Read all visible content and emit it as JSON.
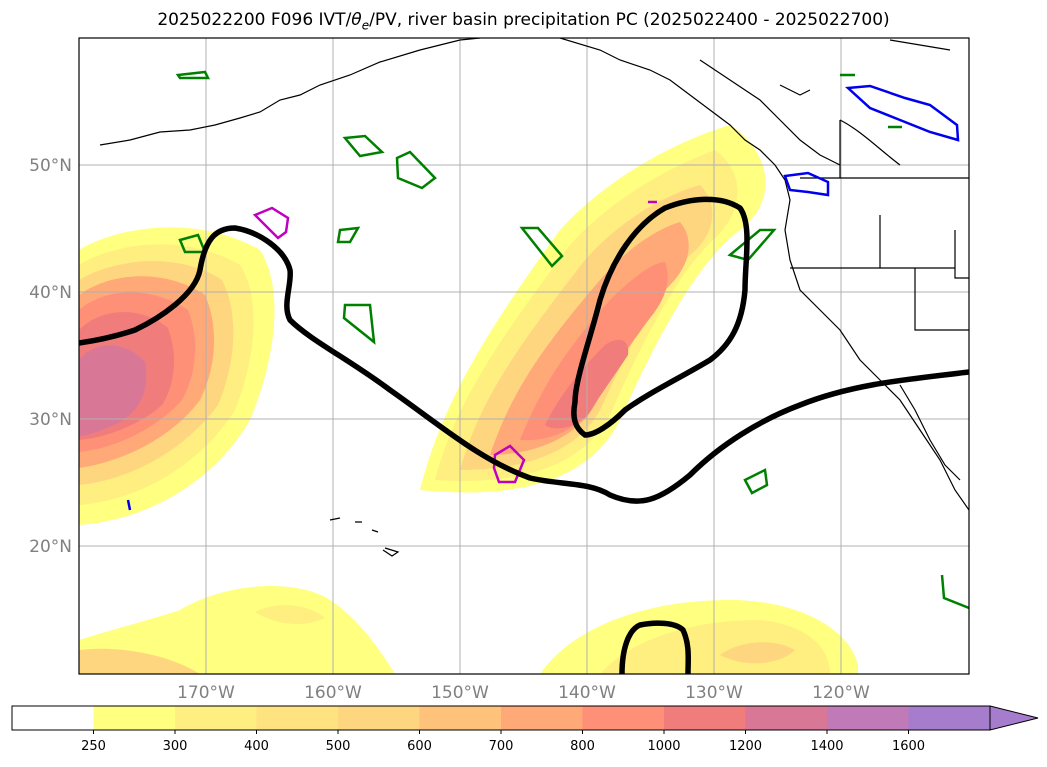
{
  "title_prefix": "2025022200 F096 IVT/",
  "title_theta": "θ",
  "title_sub": "e",
  "title_suffix": "/PV, river basin precipitation PC (2025022400 - 2025022700)",
  "lat_labels": [
    "50°N",
    "40°N",
    "30°N",
    "20°N"
  ],
  "lon_labels": [
    "170°W",
    "160°W",
    "150°W",
    "140°W",
    "130°W",
    "120°W"
  ],
  "colorbar": {
    "levels": [
      "250",
      "300",
      "400",
      "500",
      "600",
      "700",
      "800",
      "1000",
      "1200",
      "1400",
      "1600"
    ],
    "colors": [
      "#ffffff",
      "#ffff80",
      "#ffee80",
      "#ffe380",
      "#ffd680",
      "#ffc27a",
      "#ffa878",
      "#ff9078",
      "#f07c7c",
      "#d87896",
      "#c07ab8",
      "#a67ccc"
    ]
  },
  "colors": {
    "coast": "#000000",
    "pv_contour": "#000000",
    "green_contour": "#008000",
    "magenta_contour": "#c000c0",
    "blue_contour": "#0000ee"
  }
}
